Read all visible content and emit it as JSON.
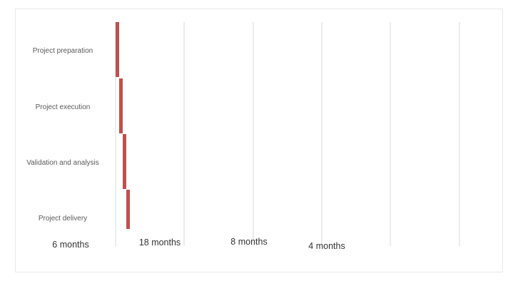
{
  "chart_data": {
    "type": "bar",
    "orientation": "horizontal",
    "categories": [
      "Project preparation",
      "Project execution",
      "Validation and analysis",
      "Project delivery"
    ],
    "grid": true,
    "legend": "none",
    "duration_labels": [
      "6 months",
      "18 months",
      "8 months",
      "4 months"
    ],
    "colors": {
      "bar": "#c0504d",
      "grid": "#d9d9d9"
    }
  }
}
